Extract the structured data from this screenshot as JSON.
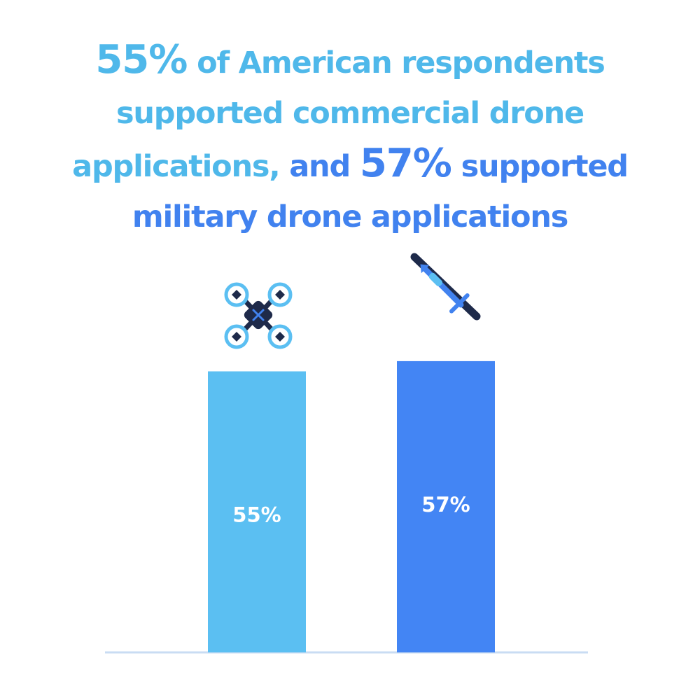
{
  "headline": {
    "line1_pct": "55%",
    "line1_text": " of American respondents",
    "line2_text": "supported commercial drone",
    "line3_text_a": "applications,",
    "line3_text_b": " and ",
    "line3_pct": "57%",
    "line3_text_c": " supported",
    "line4_text": "military drone applications",
    "color_commercial": "#4fb8ea",
    "color_military": "#4182ef"
  },
  "chart_data": {
    "type": "bar",
    "categories": [
      "",
      ""
    ],
    "values": [
      55,
      57
    ],
    "value_labels": [
      "55%",
      "57%"
    ],
    "bar_colors": [
      "#5bbff2",
      "#4385f4"
    ],
    "category_icons": [
      "quadcopter-drone-icon",
      "military-drone-plane-icon"
    ],
    "baseline_color": "#c9dcf3",
    "ylim": [
      0,
      100
    ],
    "grid": false,
    "legend": "none"
  }
}
